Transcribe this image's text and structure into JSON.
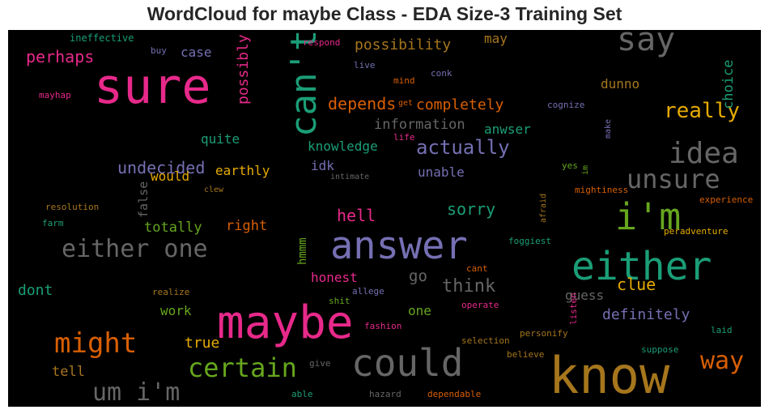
{
  "title": "WordCloud for maybe Class - EDA Size-3 Training Set",
  "chart_data": {
    "type": "wordcloud",
    "title": "WordCloud for maybe Class - EDA Size-3 Training Set",
    "background": "#000000",
    "palette": {
      "pink": "#e7298a",
      "teal": "#1b9e77",
      "orange": "#d95f02",
      "purple": "#7570b3",
      "green": "#66a61e",
      "gold": "#e6ab02",
      "brown": "#a6761d",
      "gray": "#666666"
    },
    "words": [
      {
        "text": "sure",
        "color": "#e7298a",
        "rotated": false
      },
      {
        "text": "maybe",
        "color": "#e7298a",
        "rotated": false
      },
      {
        "text": "know",
        "color": "#a6761d",
        "rotated": false
      },
      {
        "text": "answer",
        "color": "#7570b3",
        "rotated": false
      },
      {
        "text": "either",
        "color": "#1b9e77",
        "rotated": false
      },
      {
        "text": "could",
        "color": "#666666",
        "rotated": false
      },
      {
        "text": "can't",
        "color": "#1b9e77",
        "rotated": true
      },
      {
        "text": "i'm",
        "color": "#66a61e",
        "rotated": false
      },
      {
        "text": "say",
        "color": "#666666",
        "rotated": false
      },
      {
        "text": "idea",
        "color": "#666666",
        "rotated": false
      },
      {
        "text": "either one",
        "color": "#666666",
        "rotated": false
      },
      {
        "text": "unsure",
        "color": "#666666",
        "rotated": false
      },
      {
        "text": "might",
        "color": "#d95f02",
        "rotated": false
      },
      {
        "text": "certain",
        "color": "#66a61e",
        "rotated": false
      },
      {
        "text": "um i'm",
        "color": "#666666",
        "rotated": false
      },
      {
        "text": "way",
        "color": "#d95f02",
        "rotated": false
      },
      {
        "text": "really",
        "color": "#e6ab02",
        "rotated": false
      },
      {
        "text": "actually",
        "color": "#7570b3",
        "rotated": false
      },
      {
        "text": "think",
        "color": "#666666",
        "rotated": false
      },
      {
        "text": "perhaps",
        "color": "#e7298a",
        "rotated": false
      },
      {
        "text": "undecided",
        "color": "#7570b3",
        "rotated": false
      },
      {
        "text": "depends",
        "color": "#d95f02",
        "rotated": false
      },
      {
        "text": "completely",
        "color": "#d95f02",
        "rotated": false
      },
      {
        "text": "possibility",
        "color": "#a6761d",
        "rotated": false
      },
      {
        "text": "information",
        "color": "#666666",
        "rotated": false
      },
      {
        "text": "clue",
        "color": "#e6ab02",
        "rotated": false
      },
      {
        "text": "definitely",
        "color": "#7570b3",
        "rotated": false
      },
      {
        "text": "sorry",
        "color": "#1b9e77",
        "rotated": false
      },
      {
        "text": "hell",
        "color": "#e7298a",
        "rotated": false
      },
      {
        "text": "totally",
        "color": "#66a61e",
        "rotated": false
      },
      {
        "text": "dont",
        "color": "#1b9e77",
        "rotated": false
      },
      {
        "text": "go",
        "color": "#666666",
        "rotated": false
      },
      {
        "text": "honest",
        "color": "#e7298a",
        "rotated": false
      },
      {
        "text": "guess",
        "color": "#666666",
        "rotated": false
      },
      {
        "text": "true",
        "color": "#e6ab02",
        "rotated": false
      },
      {
        "text": "tell",
        "color": "#a6761d",
        "rotated": false
      },
      {
        "text": "work",
        "color": "#66a61e",
        "rotated": false
      },
      {
        "text": "one",
        "color": "#66a61e",
        "rotated": false
      },
      {
        "text": "right",
        "color": "#d95f02",
        "rotated": false
      },
      {
        "text": "knowledge",
        "color": "#1b9e77",
        "rotated": false
      },
      {
        "text": "quite",
        "color": "#1b9e77",
        "rotated": false
      },
      {
        "text": "would",
        "color": "#e6ab02",
        "rotated": false
      },
      {
        "text": "earthly",
        "color": "#e6ab02",
        "rotated": false
      },
      {
        "text": "unable",
        "color": "#7570b3",
        "rotated": false
      },
      {
        "text": "idk",
        "color": "#7570b3",
        "rotated": false
      },
      {
        "text": "case",
        "color": "#7570b3",
        "rotated": false
      },
      {
        "text": "may",
        "color": "#a6761d",
        "rotated": false
      },
      {
        "text": "dunno",
        "color": "#a6761d",
        "rotated": false
      },
      {
        "text": "anwser",
        "color": "#1b9e77",
        "rotated": false
      },
      {
        "text": "possibly",
        "color": "#e7298a",
        "rotated": true
      },
      {
        "text": "choice",
        "color": "#1b9e77",
        "rotated": true
      },
      {
        "text": "hmmm",
        "color": "#66a61e",
        "rotated": true
      },
      {
        "text": "false",
        "color": "#666666",
        "rotated": true
      },
      {
        "text": "ineffective",
        "color": "#1b9e77",
        "rotated": false
      },
      {
        "text": "respond",
        "color": "#e7298a",
        "rotated": false
      },
      {
        "text": "buy",
        "color": "#7570b3",
        "rotated": false
      },
      {
        "text": "mayhap",
        "color": "#e7298a",
        "rotated": false
      },
      {
        "text": "live",
        "color": "#7570b3",
        "rotated": false
      },
      {
        "text": "conk",
        "color": "#7570b3",
        "rotated": false
      },
      {
        "text": "mind",
        "color": "#d95f02",
        "rotated": false
      },
      {
        "text": "get",
        "color": "#d95f02",
        "rotated": false
      },
      {
        "text": "cognize",
        "color": "#7570b3",
        "rotated": false
      },
      {
        "text": "make",
        "color": "#7570b3",
        "rotated": true
      },
      {
        "text": "life",
        "color": "#e7298a",
        "rotated": false
      },
      {
        "text": "intimate",
        "color": "#666666",
        "rotated": false
      },
      {
        "text": "clew",
        "color": "#a6761d",
        "rotated": false
      },
      {
        "text": "yes",
        "color": "#66a61e",
        "rotated": false
      },
      {
        "text": "im",
        "color": "#66a61e",
        "rotated": true
      },
      {
        "text": "mightiness",
        "color": "#d95f02",
        "rotated": false
      },
      {
        "text": "experience",
        "color": "#d95f02",
        "rotated": false
      },
      {
        "text": "afraid",
        "color": "#a6761d",
        "rotated": true
      },
      {
        "text": "resolution",
        "color": "#a6761d",
        "rotated": false
      },
      {
        "text": "farm",
        "color": "#1b9e77",
        "rotated": false
      },
      {
        "text": "foggiest",
        "color": "#1b9e77",
        "rotated": false
      },
      {
        "text": "peradventure",
        "color": "#e6ab02",
        "rotated": false
      },
      {
        "text": "cant",
        "color": "#d95f02",
        "rotated": false
      },
      {
        "text": "realize",
        "color": "#a6761d",
        "rotated": false
      },
      {
        "text": "allege",
        "color": "#7570b3",
        "rotated": false
      },
      {
        "text": "shit",
        "color": "#66a61e",
        "rotated": false
      },
      {
        "text": "operate",
        "color": "#e7298a",
        "rotated": false
      },
      {
        "text": "listen",
        "color": "#e7298a",
        "rotated": true
      },
      {
        "text": "fashion",
        "color": "#e7298a",
        "rotated": false
      },
      {
        "text": "selection",
        "color": "#a6761d",
        "rotated": false
      },
      {
        "text": "personify",
        "color": "#a6761d",
        "rotated": false
      },
      {
        "text": "laid",
        "color": "#1b9e77",
        "rotated": false
      },
      {
        "text": "suppose",
        "color": "#1b9e77",
        "rotated": false
      },
      {
        "text": "believe",
        "color": "#a6761d",
        "rotated": false
      },
      {
        "text": "give",
        "color": "#666666",
        "rotated": false
      },
      {
        "text": "able",
        "color": "#1b9e77",
        "rotated": false
      },
      {
        "text": "hazard",
        "color": "#666666",
        "rotated": false
      },
      {
        "text": "dependable",
        "color": "#d95f02",
        "rotated": false
      }
    ]
  }
}
